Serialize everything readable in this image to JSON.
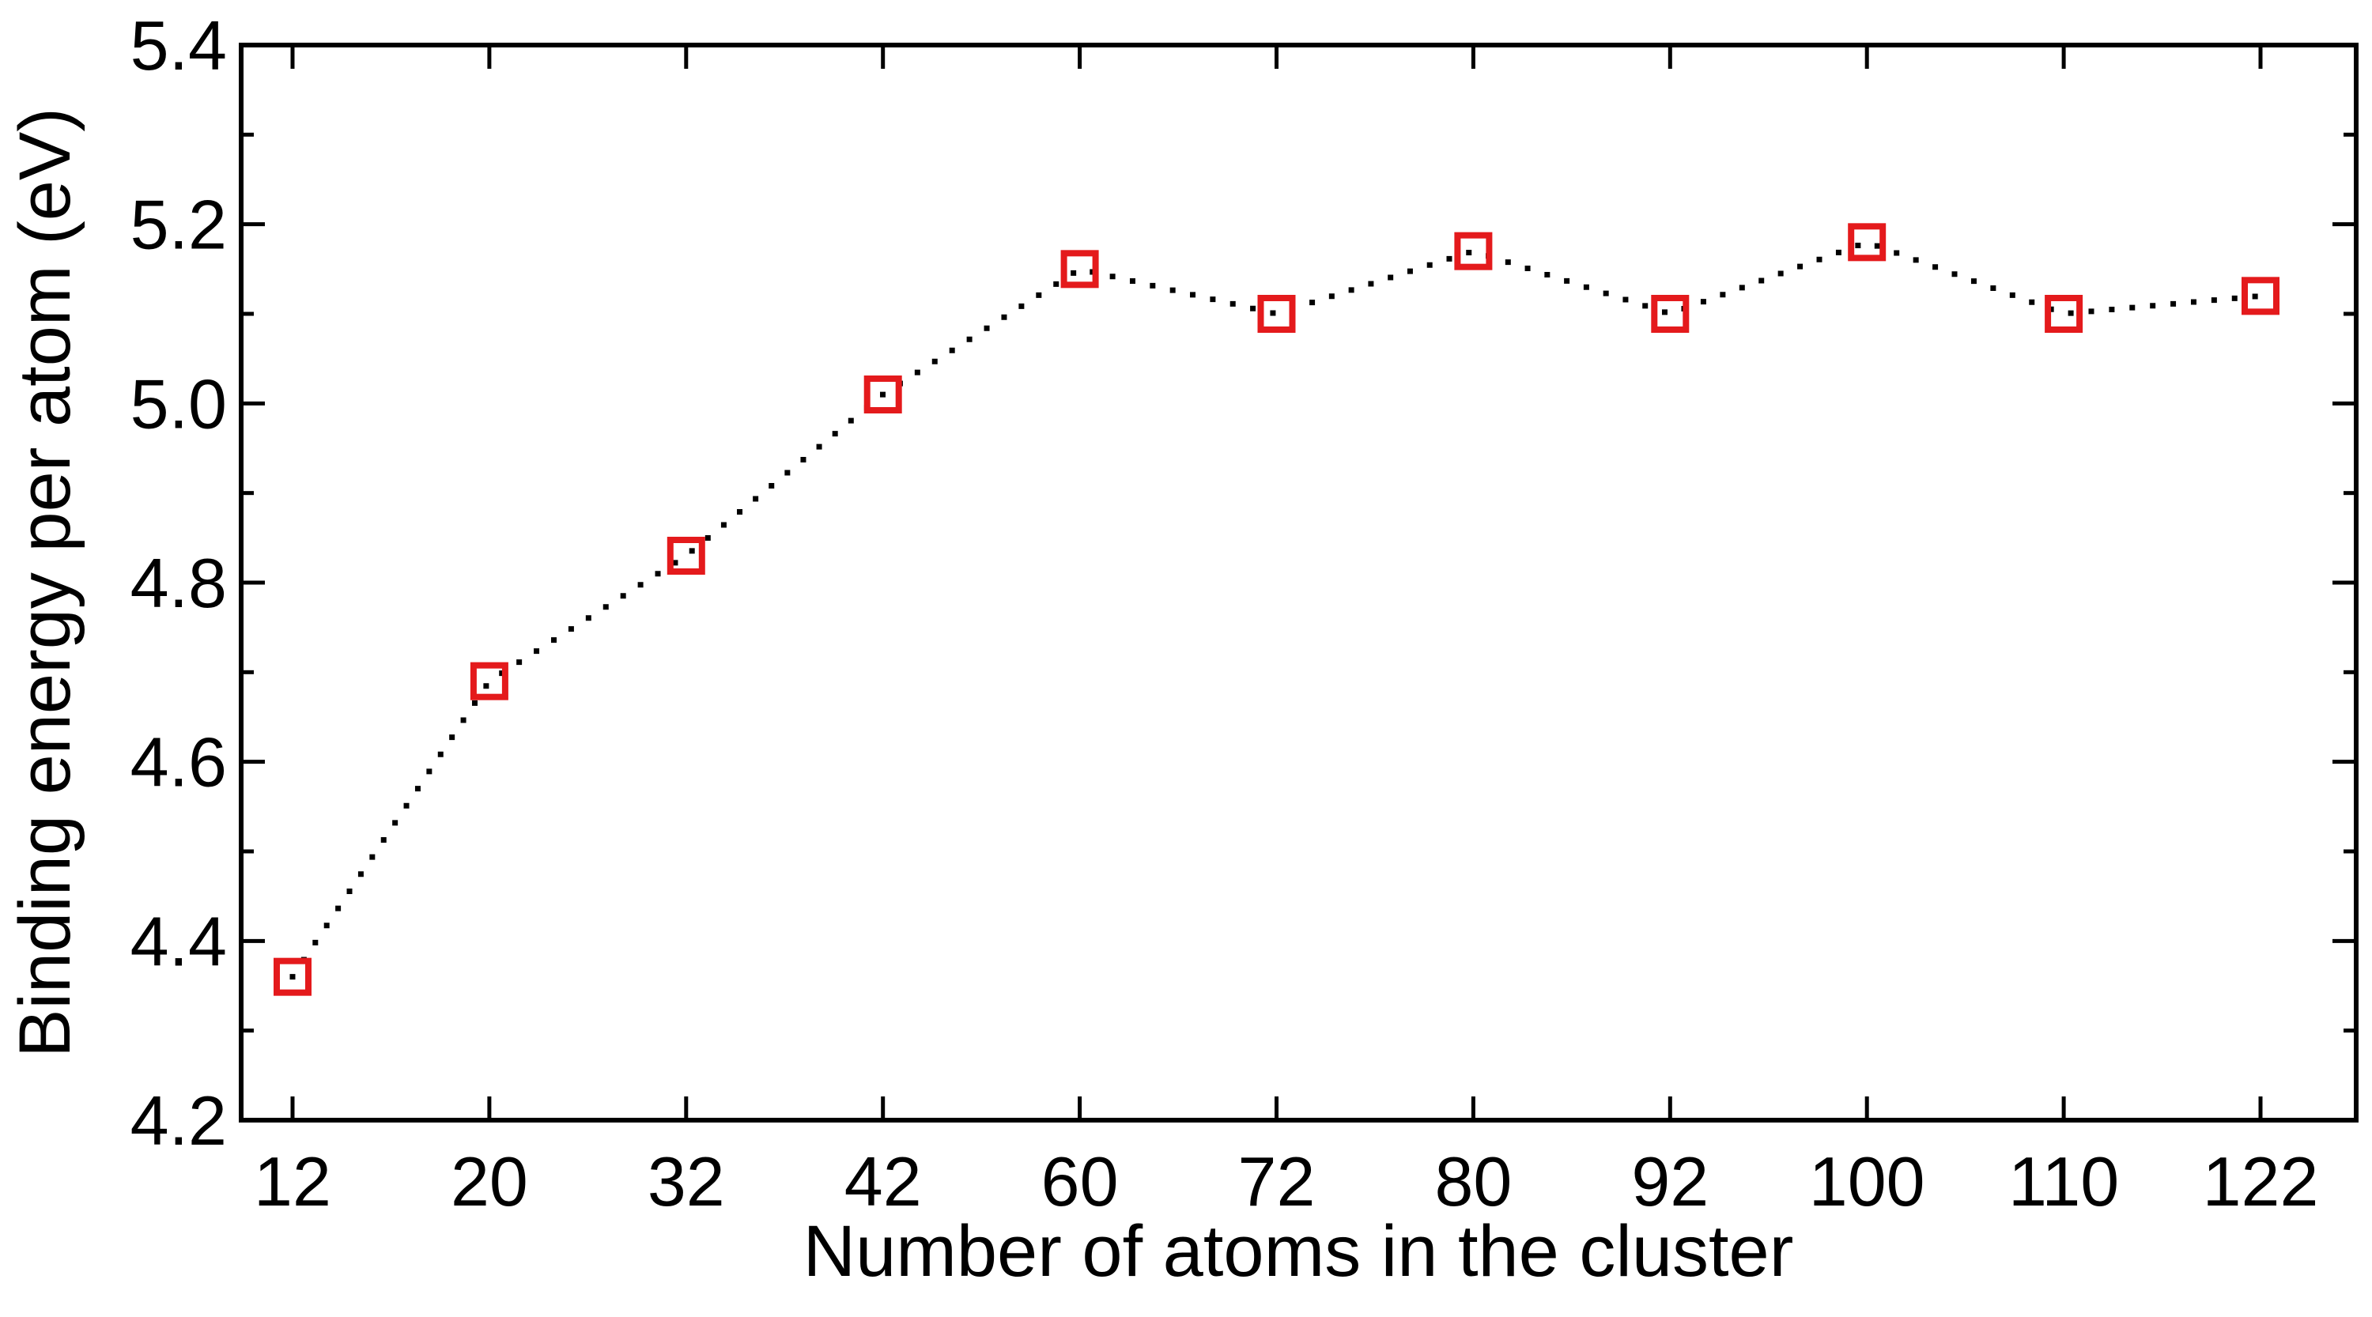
{
  "chart_data": {
    "type": "scatter",
    "title": "",
    "xlabel": "Number of atoms in the cluster",
    "ylabel": "Binding energy per atom (eV)",
    "categories": [
      "12",
      "20",
      "32",
      "42",
      "60",
      "72",
      "80",
      "92",
      "100",
      "110",
      "122"
    ],
    "values": [
      4.36,
      4.69,
      4.83,
      5.01,
      5.15,
      5.1,
      5.17,
      5.1,
      5.18,
      5.1,
      5.12
    ],
    "ylim": [
      4.2,
      5.4
    ],
    "yticks": [
      4.2,
      4.4,
      4.6,
      4.8,
      5.0,
      5.2,
      5.4
    ],
    "ytick_labels": [
      "4.2",
      "4.4",
      "4.6",
      "4.8",
      "5.0",
      "5.2",
      "5.4"
    ],
    "marker": "hollow-square",
    "marker_color": "#e41a1c",
    "line_style": "dotted",
    "line_color": "#000000",
    "grid": false,
    "legend": "none"
  }
}
